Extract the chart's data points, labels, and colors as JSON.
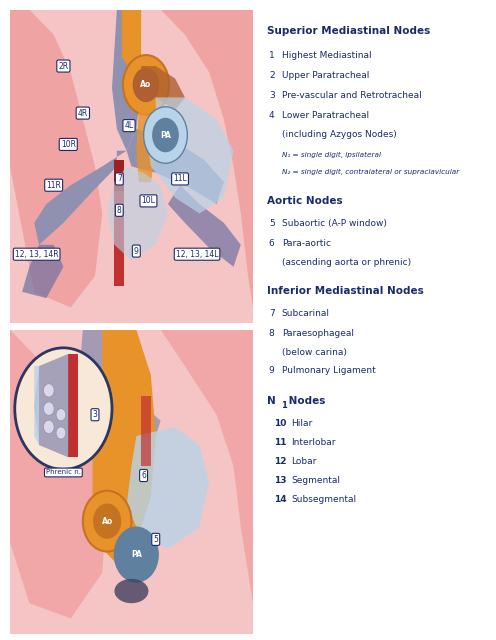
{
  "bg_color": "#ffffff",
  "text_color": "#1a2a6c",
  "label_bg": "#ffffff",
  "border_color": "#2d3561",
  "section1_title": "Superior Mediastinal Nodes",
  "section1_items": [
    {
      "num": "1",
      "text": "Highest Mediastinal"
    },
    {
      "num": "2",
      "text": "Upper Paratracheal"
    },
    {
      "num": "3",
      "text": "Pre-vascular and Retrotracheal"
    },
    {
      "num": "4",
      "text": "Lower Paratracheal\n(including Azygos Nodes)"
    }
  ],
  "section1_notes": [
    "N₁ = single digit, ipsilateral",
    "N₂ = single digit, contralateral or supraclavicular"
  ],
  "section2_title": "Aortic Nodes",
  "section2_items": [
    {
      "num": "5",
      "text": "Subaortic (A-P window)"
    },
    {
      "num": "6",
      "text": "Para-aortic\n(ascending aorta or phrenic)"
    }
  ],
  "section3_title": "Inferior Mediastinal Nodes",
  "section3_items": [
    {
      "num": "7",
      "text": "Subcarinal"
    },
    {
      "num": "8",
      "text": "Paraesophageal\n(below carina)"
    },
    {
      "num": "9",
      "text": "Pulmonary Ligament"
    }
  ],
  "section4_title": "N₁ Nodes",
  "section4_items": [
    {
      "num": "10",
      "text": "Hilar"
    },
    {
      "num": "11",
      "text": "Interlobar"
    },
    {
      "num": "12",
      "text": "Lobar"
    },
    {
      "num": "13",
      "text": "Segmental"
    },
    {
      "num": "14",
      "text": "Subsegmental"
    }
  ],
  "colors": {
    "lung_pink": "#f0a0a0",
    "lung_pink_light": "#f5c5c5",
    "trachea_purple": "#9090b0",
    "trachea_dark": "#7070a0",
    "aorta_orange": "#e8922a",
    "aorta_dark": "#c47320",
    "aorta_brown": "#b06030",
    "pa_blue_dark": "#6080a0",
    "pa_blue_light": "#b8d4e8",
    "esophagus_red": "#c03030",
    "esophagus_dark_red": "#a02020",
    "circle_bg": "#f8e8d8",
    "border_color": "#2d3561"
  }
}
